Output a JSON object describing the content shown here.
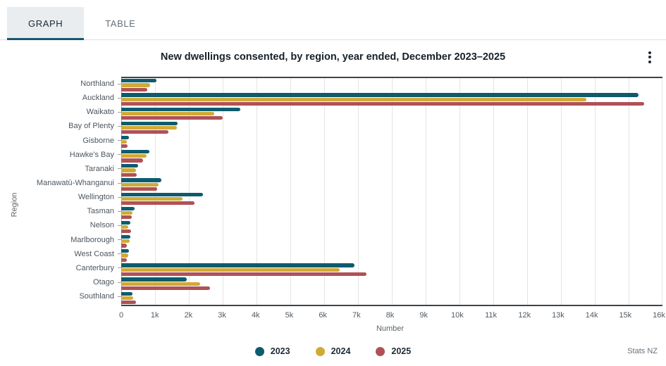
{
  "tabs": [
    {
      "label": "GRAPH",
      "active": true
    },
    {
      "label": "TABLE",
      "active": false
    }
  ],
  "header": {
    "title": "New dwellings consented, by region, year ended, December 2023–2025"
  },
  "colors": {
    "accent_tab_underline": "#14596f",
    "active_tab_bg": "#e9edf0",
    "series_2023": "#0f5b6e",
    "series_2024": "#d0aa35",
    "series_2025": "#b05156",
    "gridline": "#e3e4e5",
    "plot_border": "#3f4449"
  },
  "chart_data": {
    "type": "bar",
    "orientation": "horizontal",
    "title": "New dwellings consented, by region, year ended, December 2023–2025",
    "xlabel": "Number",
    "ylabel": "Region",
    "xlim": [
      0,
      16000
    ],
    "grid": true,
    "legend_position": "bottom",
    "x_ticks": [
      "0",
      "1k",
      "2k",
      "3k",
      "4k",
      "5k",
      "6k",
      "7k",
      "8k",
      "9k",
      "10k",
      "11k",
      "12k",
      "13k",
      "14k",
      "15k",
      "16k"
    ],
    "x_tick_values": [
      0,
      1000,
      2000,
      3000,
      4000,
      5000,
      6000,
      7000,
      8000,
      9000,
      10000,
      11000,
      12000,
      13000,
      14000,
      15000,
      16000
    ],
    "categories": [
      "Northland",
      "Auckland",
      "Waikato",
      "Bay of Plenty",
      "Gisborne",
      "Hawke's Bay",
      "Taranaki",
      "Manawatū-Whanganui",
      "Wellington",
      "Tasman",
      "Nelson",
      "Marlborough",
      "West Coast",
      "Canterbury",
      "Otago",
      "Southland"
    ],
    "series": [
      {
        "name": "2023",
        "color": "#0f5b6e",
        "values": [
          1040,
          15300,
          3520,
          1670,
          220,
          830,
          490,
          1190,
          2410,
          400,
          280,
          280,
          230,
          6890,
          1940,
          330
        ]
      },
      {
        "name": "2024",
        "color": "#d0aa35",
        "values": [
          850,
          13750,
          2750,
          1640,
          170,
          740,
          440,
          1100,
          1810,
          330,
          210,
          260,
          210,
          6460,
          2330,
          350
        ]
      },
      {
        "name": "2025",
        "color": "#b05156",
        "values": [
          780,
          15450,
          3000,
          1400,
          190,
          650,
          460,
          1060,
          2160,
          310,
          300,
          160,
          175,
          7260,
          2630,
          430
        ]
      }
    ]
  },
  "footer": {
    "attribution": "Stats NZ"
  }
}
